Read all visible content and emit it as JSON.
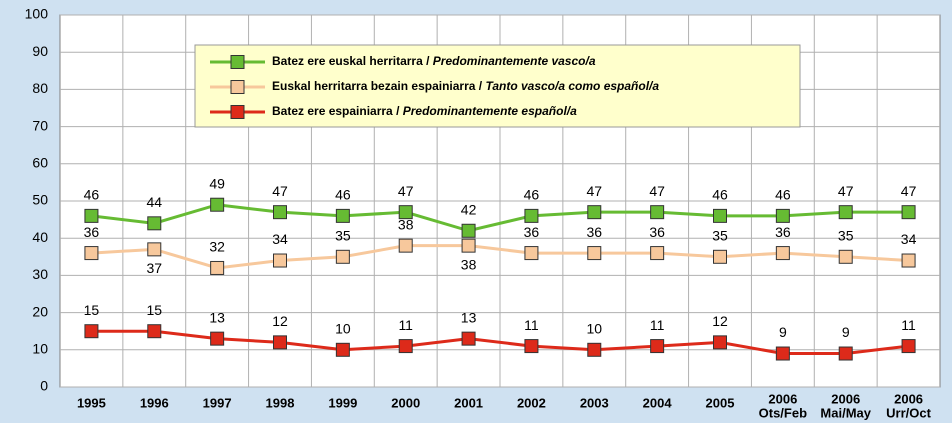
{
  "chart_data": {
    "type": "line",
    "categories": [
      "1995",
      "1996",
      "1997",
      "1998",
      "1999",
      "2000",
      "2001",
      "2002",
      "2003",
      "2004",
      "2005",
      [
        "2006",
        "Ots/Feb"
      ],
      [
        "2006",
        "Mai/May"
      ],
      [
        "2006",
        "Urr/Oct"
      ]
    ],
    "series": [
      {
        "name": "Batez ere euskal herritarra / Predominantemente vasco/a",
        "color": "#66bb33",
        "values": [
          46,
          44,
          49,
          47,
          46,
          47,
          42,
          46,
          47,
          47,
          46,
          46,
          47,
          47
        ]
      },
      {
        "name": "Euskal herritarra bezain espainiarra / Tanto vasco/a como español/a",
        "color": "#f7c89c",
        "values": [
          36,
          37,
          32,
          34,
          35,
          38,
          38,
          36,
          36,
          36,
          35,
          36,
          35,
          34
        ]
      },
      {
        "name": "Batez ere espainiarra / Predominantemente español/a",
        "color": "#dd2a1a",
        "values": [
          15,
          15,
          13,
          12,
          10,
          11,
          13,
          11,
          10,
          11,
          12,
          9,
          9,
          11
        ]
      }
    ],
    "ylim": [
      0,
      100
    ],
    "yticks": [
      0,
      10,
      20,
      30,
      40,
      50,
      60,
      70,
      80,
      90,
      100
    ],
    "grid": true,
    "legend": "top"
  }
}
